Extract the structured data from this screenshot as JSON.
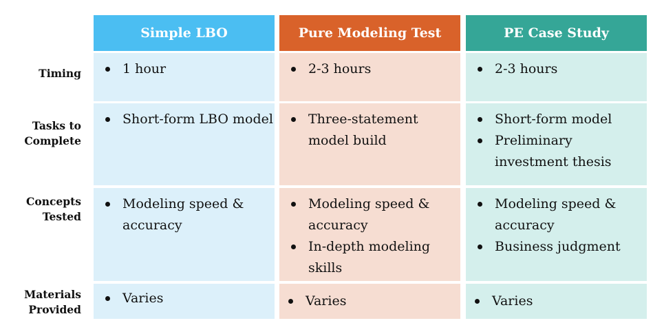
{
  "colors": {
    "simple_header": "#4bbef2",
    "simple_cell": "#dcf0fa",
    "modeling_header": "#d9622a",
    "modeling_cell": "#f6ddd2",
    "case_header": "#35a697",
    "case_cell": "#d4efec"
  },
  "columns": [
    {
      "header": "Simple LBO"
    },
    {
      "header": "Pure Modeling Test"
    },
    {
      "header": "PE Case Study"
    }
  ],
  "rows": [
    {
      "label_lines": [
        "Timing"
      ],
      "cells": [
        [
          "1 hour"
        ],
        [
          "2-3 hours"
        ],
        [
          "2-3 hours"
        ]
      ]
    },
    {
      "label_lines": [
        "Tasks to",
        "Complete"
      ],
      "cells": [
        [
          "Short-form LBO model"
        ],
        [
          "Three-statement model build"
        ],
        [
          "Short-form model",
          "Preliminary investment thesis"
        ]
      ]
    },
    {
      "label_lines": [
        "Concepts",
        "Tested"
      ],
      "cells": [
        [
          "Modeling speed & accuracy"
        ],
        [
          "Modeling speed & accuracy",
          "In-depth modeling skills"
        ],
        [
          "Modeling speed & accuracy",
          "Business judgment"
        ]
      ]
    },
    {
      "label_lines": [
        "Materials",
        "Provided"
      ],
      "cells": [
        [
          "Varies"
        ],
        [
          "Varies"
        ],
        [
          "Varies"
        ]
      ]
    }
  ]
}
